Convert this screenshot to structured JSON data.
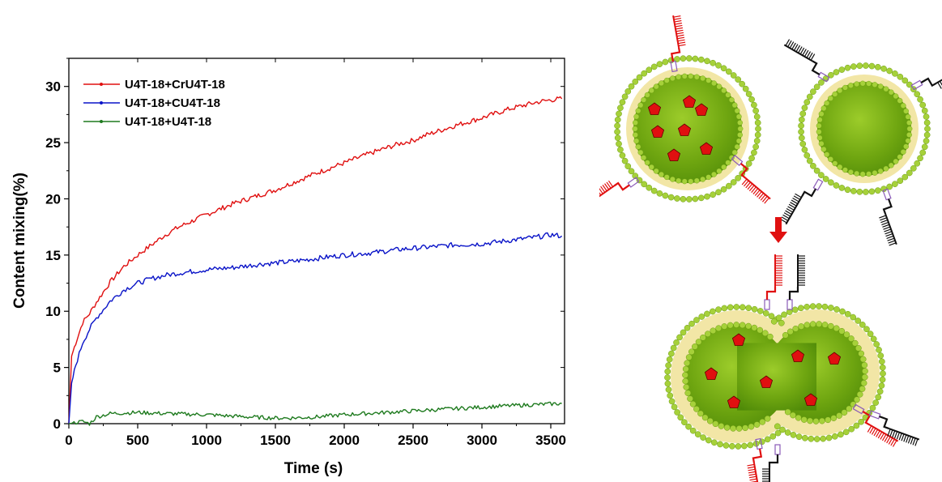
{
  "colors": {
    "series_red": "#e01010",
    "series_blue": "#0a14c8",
    "series_green": "#1e7a1e",
    "vesicle_fill": "#7fb71a",
    "lipid_head": "#a6d13a",
    "lipid_tail": "#f2e6a6",
    "cargo": "#e01010",
    "dna_red": "#e01010",
    "dna_black": "#111111",
    "anchor": "#8a5ab8"
  },
  "diagram": {
    "icons": [
      "lipid-vesicle-icon",
      "dna-strand-icon",
      "cargo-pentagon-icon",
      "fusion-arrow-icon"
    ]
  },
  "chart_data": {
    "type": "line",
    "xlabel": "Time (s)",
    "ylabel": "Content mixing(%)",
    "xlim": [
      0,
      3600
    ],
    "ylim": [
      0,
      32.5
    ],
    "xticks": [
      "0",
      "500",
      "1000",
      "1500",
      "2000",
      "2500",
      "3000",
      "3500"
    ],
    "yticks": [
      "0",
      "5",
      "10",
      "15",
      "20",
      "25",
      "30"
    ],
    "grid": false,
    "legend_position": "top-left",
    "series": [
      {
        "name": "U4T-18+CrU4T-18",
        "color": "#e01010",
        "x": [
          0,
          20,
          50,
          100,
          150,
          200,
          300,
          400,
          500,
          600,
          700,
          800,
          1000,
          1200,
          1400,
          1500,
          1600,
          1800,
          2000,
          2200,
          2400,
          2500,
          2600,
          2800,
          3000,
          3200,
          3400,
          3500,
          3580
        ],
        "y": [
          0,
          6.0,
          7.2,
          9.0,
          9.8,
          10.8,
          12.6,
          14.0,
          15.0,
          15.9,
          16.8,
          17.5,
          18.6,
          19.6,
          20.4,
          20.8,
          21.3,
          22.3,
          23.2,
          24.1,
          24.9,
          25.2,
          25.7,
          26.5,
          27.2,
          28.0,
          28.6,
          28.8,
          28.9
        ]
      },
      {
        "name": "U4T-18+CU4T-18",
        "color": "#0a14c8",
        "x": [
          0,
          20,
          50,
          100,
          150,
          200,
          300,
          400,
          500,
          600,
          700,
          800,
          1000,
          1200,
          1400,
          1600,
          1800,
          2000,
          2200,
          2400,
          2600,
          2800,
          3000,
          3200,
          3400,
          3500,
          3580
        ],
        "y": [
          0,
          3.6,
          5.2,
          7.2,
          8.4,
          9.4,
          10.9,
          11.9,
          12.5,
          12.9,
          13.2,
          13.4,
          13.7,
          13.9,
          14.2,
          14.4,
          14.7,
          15.0,
          15.2,
          15.5,
          15.7,
          15.9,
          16.0,
          16.3,
          16.6,
          16.8,
          16.7
        ]
      },
      {
        "name": "U4T-18+U4T-18",
        "color": "#1e7a1e",
        "x": [
          0,
          50,
          100,
          150,
          200,
          300,
          500,
          700,
          1000,
          1300,
          1500,
          1600,
          1800,
          2000,
          2300,
          2600,
          2900,
          3200,
          3400,
          3580
        ],
        "y": [
          0,
          0.1,
          0.2,
          0.0,
          0.6,
          0.9,
          1.0,
          0.9,
          0.8,
          0.6,
          0.5,
          0.5,
          0.6,
          0.8,
          1.0,
          1.2,
          1.4,
          1.6,
          1.7,
          1.8
        ]
      }
    ]
  }
}
